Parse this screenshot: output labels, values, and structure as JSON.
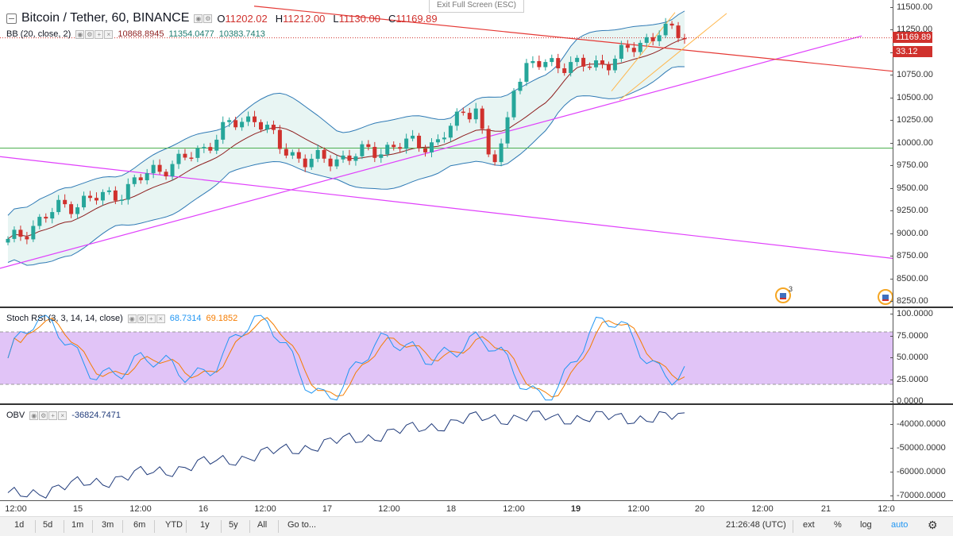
{
  "header": {
    "symbol": "Bitcoin / Tether, 60, BINANCE",
    "open_label": "O",
    "open": "11202.02",
    "high_label": "H",
    "high": "11212.00",
    "low_label": "L",
    "low": "11130.00",
    "close_label": "C",
    "close": "11169.89"
  },
  "fullscreen_tooltip": "Exit Full Screen (ESC)",
  "indicators": {
    "bb": {
      "name": "BB (20, close, 2)",
      "basis": "10868.8945",
      "upper": "11354.0477",
      "lower": "10383.7413",
      "colors": {
        "basis": "#8e1f1f",
        "upper": "#2f7ab5",
        "lower": "#2f7ab5"
      }
    },
    "stoch_rsi": {
      "name": "Stoch RSI (3, 3, 14, 14, close)",
      "k": "68.7314",
      "d": "69.1852",
      "colors": {
        "k": "#2196f3",
        "d": "#f57c00"
      }
    },
    "obv": {
      "name": "OBV",
      "value": "-36824.7471",
      "color": "#1f3a7a"
    }
  },
  "price_scale": {
    "ticks": [
      "11500.00",
      "11250.00",
      "11000.00",
      "10750.00",
      "10500.00",
      "10250.00",
      "10000.00",
      "9750.00",
      "9500.00",
      "9250.00",
      "9000.00",
      "8750.00",
      "8500.00",
      "8250.00"
    ],
    "current_price": "11169.89",
    "countdown": "33.12"
  },
  "stoch_scale": {
    "ticks": [
      "100.0000",
      "75.0000",
      "50.0000",
      "25.0000",
      "0.0000"
    ]
  },
  "obv_scale": {
    "ticks": [
      "-40000.0000",
      "-50000.0000",
      "-60000.0000",
      "-70000.0000"
    ]
  },
  "time_axis": {
    "labels": [
      "12:00",
      "15",
      "12:00",
      "16",
      "12:00",
      "17",
      "12:00",
      "18",
      "12:00",
      "19",
      "12:00",
      "20",
      "12:00",
      "21",
      "12:0"
    ]
  },
  "events": {
    "badge_count": "3"
  },
  "bottom_bar": {
    "ranges": [
      "1d",
      "5d",
      "1m",
      "3m",
      "6m",
      "YTD",
      "1y",
      "5y",
      "All"
    ],
    "goto": "Go to...",
    "clock": "21:26:48 (UTC)",
    "ext": "ext",
    "percent": "%",
    "log": "log",
    "auto": "auto"
  },
  "colors": {
    "up": "#26a69a",
    "down": "#d0312d",
    "bb_fill": "#e8f5f3",
    "red_trendline": "#e53935",
    "magenta_trendline": "#e040fb",
    "horizontal_level": "#4caf50",
    "channel": "#ffb74d",
    "stoch_band": "#e1c4f7"
  }
}
